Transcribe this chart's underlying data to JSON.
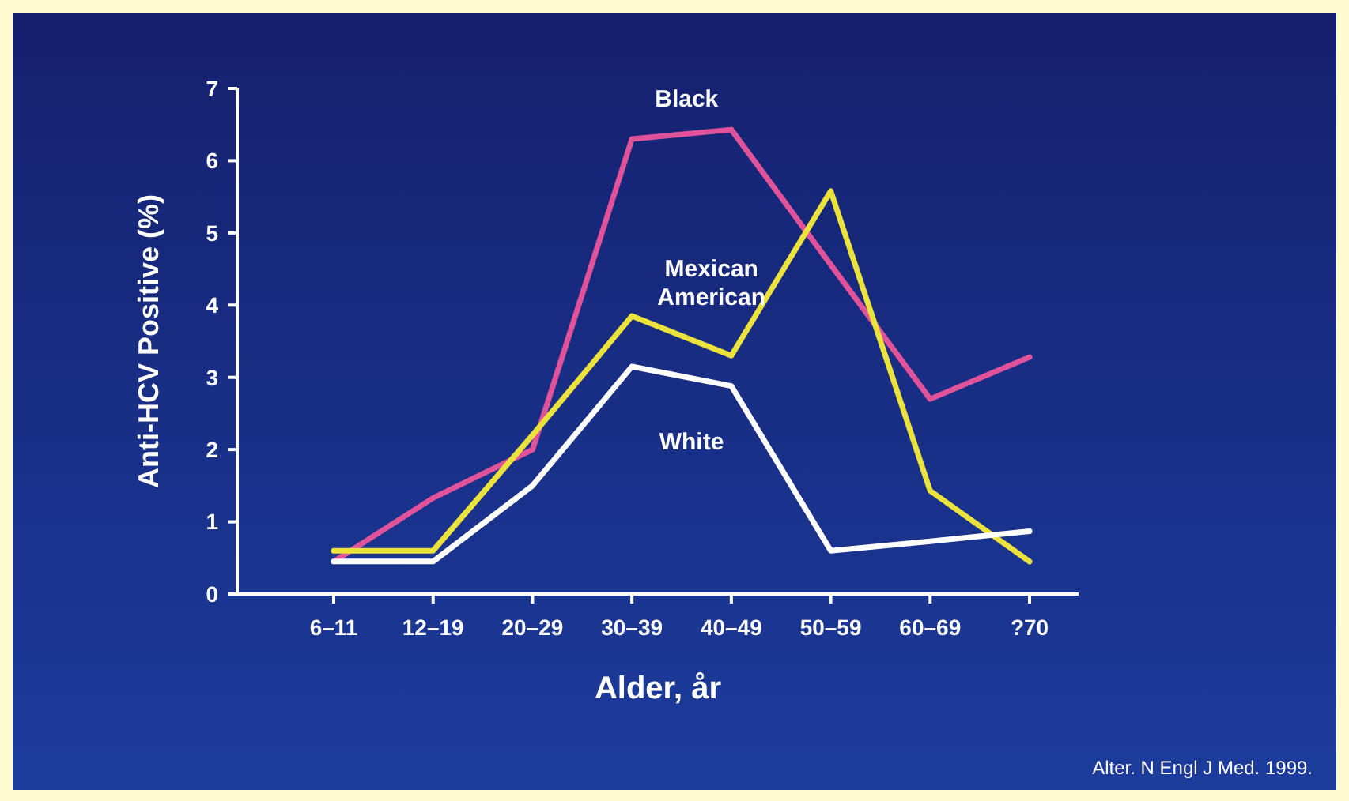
{
  "chart_data": {
    "type": "line",
    "xlabel": "Alder, år",
    "ylabel": "Anti-HCV Positive (%)",
    "categories": [
      "6–11",
      "12–19",
      "20–29",
      "30–39",
      "40–49",
      "50–59",
      "60–69",
      "?70"
    ],
    "series": [
      {
        "name": "Black",
        "color": "#e0529a",
        "values": [
          0.45,
          1.33,
          2.0,
          6.3,
          6.43,
          4.56,
          2.7,
          3.28
        ]
      },
      {
        "name": "Mexican American",
        "color": "#ece23c",
        "values": [
          0.6,
          0.6,
          2.2,
          3.85,
          3.3,
          5.58,
          1.43,
          0.45
        ]
      },
      {
        "name": "White",
        "color": "#ffffff",
        "values": [
          0.45,
          0.45,
          1.5,
          3.15,
          2.88,
          0.6,
          0.73,
          0.87
        ]
      }
    ],
    "ylim": [
      0,
      7
    ],
    "yticks": [
      0,
      1,
      2,
      3,
      4,
      5,
      6,
      7
    ],
    "grid": false,
    "line_style": "solid",
    "annotations": [
      "Alter. N Engl J Med. 1999."
    ]
  }
}
